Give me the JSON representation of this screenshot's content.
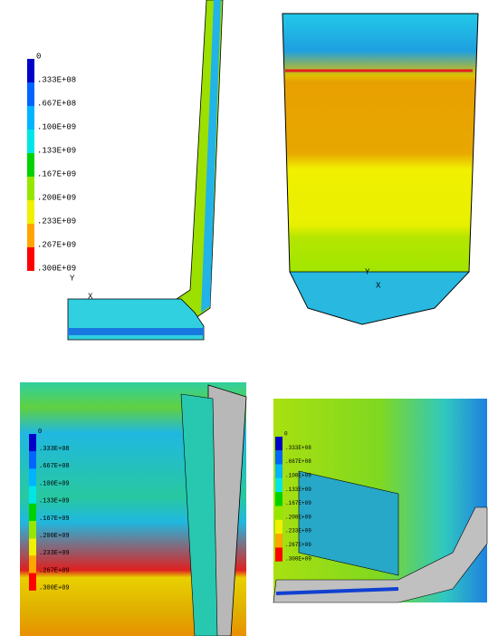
{
  "panels": [
    {
      "legend": {
        "labels": [
          "0",
          ".333E+08",
          ".667E+08",
          ".100E+09",
          ".133E+09",
          ".167E+09",
          ".200E+09",
          ".233E+09",
          ".267E+09",
          ".300E+09"
        ]
      },
      "triad": [
        "Y",
        "X"
      ]
    },
    {
      "triad": [
        "Y",
        "X"
      ]
    },
    {
      "legend": {
        "labels": [
          "0",
          ".333E+08",
          ".667E+08",
          ".100E+09",
          ".133E+09",
          ".167E+09",
          ".200E+09",
          ".233E+09",
          ".267E+09",
          ".300E+09"
        ]
      }
    },
    {
      "legend": {
        "labels": [
          "0",
          ".333E+08",
          ".667E+08",
          ".100E+09",
          ".133E+09",
          ".167E+09",
          ".200E+09",
          ".233E+09",
          ".267E+09",
          ".300E+09"
        ]
      }
    }
  ]
}
